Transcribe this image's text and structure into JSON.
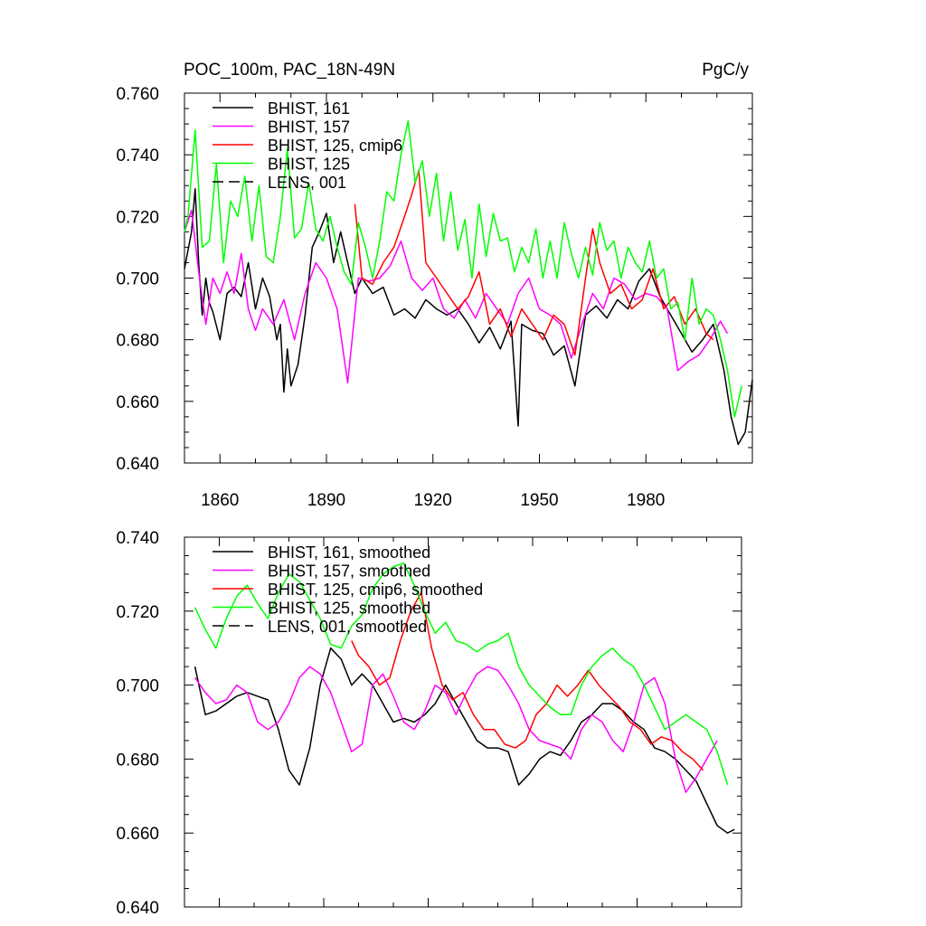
{
  "title_left": "POC_100m, PAC_18N-49N",
  "title_right": "PgC/y",
  "chart_data": [
    {
      "type": "line",
      "title": "POC_100m, PAC_18N-49N",
      "units": "PgC/y",
      "xlim": [
        1850,
        2010
      ],
      "ylim": [
        0.64,
        0.76
      ],
      "xticks": [
        "1860",
        "1890",
        "1920",
        "1950",
        "1980"
      ],
      "xtick_values": [
        1860,
        1890,
        1920,
        1950,
        1980
      ],
      "yticks": [
        "0.640",
        "0.660",
        "0.680",
        "0.700",
        "0.720",
        "0.740",
        "0.760"
      ],
      "ytick_values": [
        0.64,
        0.66,
        0.68,
        0.7,
        0.72,
        0.74,
        0.76
      ],
      "legend_position": "top-left",
      "series": [
        {
          "name": "BHIST, 161",
          "color": "#000000",
          "dash": "solid",
          "x": [
            1850,
            1852,
            1853,
            1854,
            1855,
            1856,
            1857,
            1858,
            1860,
            1862,
            1864,
            1866,
            1868,
            1870,
            1872,
            1874,
            1876,
            1877,
            1878,
            1879,
            1880,
            1882,
            1884,
            1886,
            1888,
            1890,
            1892,
            1894,
            1896,
            1898,
            1900,
            1903,
            1906,
            1909,
            1912,
            1915,
            1918,
            1921,
            1924,
            1927,
            1930,
            1933,
            1936,
            1939,
            1942,
            1944,
            1945,
            1948,
            1951,
            1954,
            1957,
            1960,
            1963,
            1966,
            1969,
            1972,
            1975,
            1978,
            1981,
            1984,
            1987,
            1990,
            1993,
            1996,
            1999,
            2002,
            2004,
            2006,
            2008,
            2010
          ],
          "y": [
            0.703,
            0.715,
            0.729,
            0.705,
            0.688,
            0.7,
            0.692,
            0.689,
            0.68,
            0.695,
            0.697,
            0.694,
            0.705,
            0.69,
            0.7,
            0.694,
            0.68,
            0.685,
            0.663,
            0.677,
            0.665,
            0.672,
            0.688,
            0.71,
            0.715,
            0.721,
            0.705,
            0.715,
            0.705,
            0.695,
            0.7,
            0.695,
            0.697,
            0.688,
            0.69,
            0.687,
            0.693,
            0.69,
            0.688,
            0.69,
            0.685,
            0.679,
            0.684,
            0.677,
            0.686,
            0.652,
            0.685,
            0.683,
            0.682,
            0.675,
            0.678,
            0.665,
            0.688,
            0.691,
            0.687,
            0.693,
            0.69,
            0.699,
            0.703,
            0.694,
            0.688,
            0.682,
            0.676,
            0.68,
            0.685,
            0.67,
            0.655,
            0.646,
            0.65,
            0.667
          ]
        },
        {
          "name": "BHIST, 157",
          "color": "#ff00ff",
          "dash": "solid",
          "x": [
            1850,
            1852,
            1854,
            1856,
            1858,
            1860,
            1862,
            1864,
            1866,
            1868,
            1870,
            1872,
            1875,
            1878,
            1881,
            1884,
            1887,
            1890,
            1893,
            1896,
            1899,
            1902,
            1905,
            1908,
            1911,
            1914,
            1917,
            1920,
            1923,
            1926,
            1929,
            1932,
            1935,
            1938,
            1941,
            1944,
            1947,
            1950,
            1953,
            1956,
            1959,
            1962,
            1965,
            1968,
            1971,
            1974,
            1977,
            1980,
            1983,
            1986,
            1989,
            1992,
            1995,
            1998,
            2001,
            2003
          ],
          "y": [
            0.715,
            0.722,
            0.702,
            0.685,
            0.7,
            0.695,
            0.702,
            0.695,
            0.708,
            0.69,
            0.683,
            0.69,
            0.685,
            0.693,
            0.68,
            0.695,
            0.705,
            0.7,
            0.69,
            0.666,
            0.7,
            0.699,
            0.7,
            0.704,
            0.712,
            0.7,
            0.696,
            0.7,
            0.69,
            0.687,
            0.693,
            0.687,
            0.695,
            0.69,
            0.685,
            0.695,
            0.7,
            0.69,
            0.688,
            0.685,
            0.674,
            0.685,
            0.695,
            0.69,
            0.7,
            0.698,
            0.693,
            0.695,
            0.694,
            0.69,
            0.67,
            0.673,
            0.675,
            0.68,
            0.686,
            0.682
          ]
        },
        {
          "name": "BHIST, 125, cmip6",
          "color": "#ff0000",
          "dash": "solid",
          "x": [
            1898,
            1900,
            1903,
            1906,
            1909,
            1912,
            1914,
            1916,
            1918,
            1921,
            1924,
            1927,
            1930,
            1933,
            1936,
            1939,
            1942,
            1945,
            1948,
            1951,
            1954,
            1957,
            1960,
            1963,
            1965,
            1967,
            1970,
            1973,
            1976,
            1979,
            1982,
            1985,
            1988,
            1991,
            1994,
            1997,
            1999
          ],
          "y": [
            0.724,
            0.7,
            0.698,
            0.705,
            0.71,
            0.72,
            0.727,
            0.735,
            0.705,
            0.7,
            0.695,
            0.69,
            0.694,
            0.702,
            0.685,
            0.69,
            0.681,
            0.69,
            0.685,
            0.68,
            0.688,
            0.685,
            0.675,
            0.7,
            0.716,
            0.705,
            0.695,
            0.698,
            0.69,
            0.693,
            0.703,
            0.69,
            0.694,
            0.685,
            0.69,
            0.682,
            0.68
          ]
        },
        {
          "name": "BHIST, 125",
          "color": "#00ff00",
          "dash": "solid",
          "x": [
            1850,
            1851,
            1853,
            1855,
            1857,
            1859,
            1861,
            1863,
            1865,
            1867,
            1869,
            1871,
            1873,
            1875,
            1877,
            1879,
            1881,
            1883,
            1885,
            1887,
            1889,
            1891,
            1893,
            1895,
            1897,
            1899,
            1901,
            1903,
            1905,
            1907,
            1909,
            1911,
            1913,
            1915,
            1917,
            1919,
            1921,
            1923,
            1925,
            1927,
            1929,
            1931,
            1933,
            1935,
            1937,
            1939,
            1941,
            1943,
            1945,
            1947,
            1949,
            1951,
            1953,
            1955,
            1957,
            1959,
            1961,
            1963,
            1965,
            1967,
            1969,
            1971,
            1973,
            1975,
            1977,
            1979,
            1981,
            1983,
            1985,
            1987,
            1989,
            1991,
            1993,
            1995,
            1997,
            1999,
            2001,
            2003,
            2005,
            2007
          ],
          "y": [
            0.715,
            0.72,
            0.748,
            0.71,
            0.712,
            0.737,
            0.705,
            0.725,
            0.72,
            0.733,
            0.712,
            0.73,
            0.707,
            0.705,
            0.72,
            0.742,
            0.713,
            0.716,
            0.731,
            0.716,
            0.712,
            0.72,
            0.71,
            0.702,
            0.698,
            0.718,
            0.71,
            0.7,
            0.712,
            0.728,
            0.725,
            0.74,
            0.751,
            0.731,
            0.738,
            0.72,
            0.734,
            0.712,
            0.728,
            0.709,
            0.719,
            0.7,
            0.724,
            0.707,
            0.721,
            0.712,
            0.713,
            0.702,
            0.71,
            0.705,
            0.716,
            0.7,
            0.712,
            0.7,
            0.718,
            0.708,
            0.7,
            0.71,
            0.701,
            0.718,
            0.709,
            0.712,
            0.7,
            0.71,
            0.705,
            0.702,
            0.712,
            0.7,
            0.703,
            0.69,
            0.692,
            0.68,
            0.7,
            0.685,
            0.69,
            0.688,
            0.68,
            0.67,
            0.655,
            0.665
          ]
        },
        {
          "name": "LENS, 001",
          "color": "#000000",
          "dash": "dashed",
          "x": [],
          "y": []
        }
      ]
    },
    {
      "type": "line",
      "xlim": [
        1850,
        2010
      ],
      "ylim": [
        0.64,
        0.74
      ],
      "yticks": [
        "0.640",
        "0.660",
        "0.680",
        "0.700",
        "0.720",
        "0.740"
      ],
      "ytick_values": [
        0.64,
        0.66,
        0.68,
        0.7,
        0.72,
        0.74
      ],
      "legend_position": "top-left",
      "series": [
        {
          "name": "BHIST, 161, smoothed",
          "color": "#000000",
          "dash": "solid",
          "x": [
            1853,
            1856,
            1859,
            1862,
            1865,
            1868,
            1871,
            1874,
            1877,
            1880,
            1883,
            1886,
            1889,
            1892,
            1895,
            1898,
            1901,
            1904,
            1907,
            1910,
            1913,
            1916,
            1919,
            1922,
            1925,
            1928,
            1931,
            1934,
            1937,
            1940,
            1943,
            1946,
            1949,
            1952,
            1955,
            1958,
            1961,
            1964,
            1967,
            1970,
            1973,
            1976,
            1979,
            1982,
            1985,
            1988,
            1991,
            1994,
            1997,
            2000,
            2003,
            2006,
            2008
          ],
          "y": [
            0.705,
            0.692,
            0.693,
            0.695,
            0.697,
            0.698,
            0.697,
            0.696,
            0.688,
            0.677,
            0.673,
            0.683,
            0.7,
            0.71,
            0.707,
            0.7,
            0.703,
            0.7,
            0.695,
            0.69,
            0.691,
            0.69,
            0.692,
            0.695,
            0.7,
            0.695,
            0.69,
            0.685,
            0.683,
            0.683,
            0.682,
            0.673,
            0.676,
            0.68,
            0.682,
            0.681,
            0.685,
            0.69,
            0.692,
            0.695,
            0.695,
            0.693,
            0.69,
            0.688,
            0.683,
            0.682,
            0.68,
            0.677,
            0.674,
            0.668,
            0.662,
            0.66,
            0.661
          ]
        },
        {
          "name": "BHIST, 157, smoothed",
          "color": "#ff00ff",
          "dash": "solid",
          "x": [
            1853,
            1856,
            1859,
            1862,
            1865,
            1868,
            1871,
            1874,
            1877,
            1880,
            1883,
            1886,
            1889,
            1892,
            1895,
            1898,
            1901,
            1904,
            1907,
            1910,
            1913,
            1916,
            1919,
            1922,
            1925,
            1928,
            1931,
            1934,
            1937,
            1940,
            1943,
            1946,
            1949,
            1952,
            1955,
            1958,
            1961,
            1964,
            1967,
            1970,
            1973,
            1976,
            1979,
            1982,
            1985,
            1988,
            1991,
            1994,
            1997,
            2000,
            2003
          ],
          "y": [
            0.702,
            0.698,
            0.695,
            0.696,
            0.7,
            0.698,
            0.69,
            0.688,
            0.69,
            0.695,
            0.702,
            0.705,
            0.703,
            0.698,
            0.69,
            0.682,
            0.684,
            0.7,
            0.703,
            0.697,
            0.69,
            0.688,
            0.693,
            0.7,
            0.698,
            0.692,
            0.698,
            0.703,
            0.705,
            0.704,
            0.7,
            0.695,
            0.688,
            0.685,
            0.684,
            0.683,
            0.68,
            0.688,
            0.692,
            0.69,
            0.685,
            0.682,
            0.69,
            0.7,
            0.702,
            0.695,
            0.68,
            0.671,
            0.675,
            0.68,
            0.685
          ]
        },
        {
          "name": "BHIST, 125, cmip6, smoothed",
          "color": "#ff0000",
          "dash": "solid",
          "x": [
            1898,
            1900,
            1903,
            1906,
            1909,
            1912,
            1915,
            1918,
            1921,
            1924,
            1927,
            1930,
            1933,
            1936,
            1939,
            1942,
            1945,
            1948,
            1951,
            1954,
            1957,
            1960,
            1963,
            1966,
            1969,
            1972,
            1975,
            1978,
            1981,
            1984,
            1987,
            1990,
            1993,
            1996,
            1999
          ],
          "y": [
            0.712,
            0.708,
            0.705,
            0.7,
            0.702,
            0.712,
            0.72,
            0.725,
            0.71,
            0.7,
            0.696,
            0.698,
            0.692,
            0.688,
            0.688,
            0.684,
            0.683,
            0.685,
            0.692,
            0.695,
            0.7,
            0.697,
            0.7,
            0.704,
            0.7,
            0.697,
            0.694,
            0.69,
            0.688,
            0.684,
            0.686,
            0.685,
            0.682,
            0.68,
            0.677
          ]
        },
        {
          "name": "BHIST, 125, smoothed",
          "color": "#00ff00",
          "dash": "solid",
          "x": [
            1853,
            1856,
            1859,
            1862,
            1865,
            1868,
            1871,
            1874,
            1877,
            1880,
            1883,
            1886,
            1889,
            1892,
            1895,
            1898,
            1901,
            1904,
            1907,
            1910,
            1913,
            1916,
            1919,
            1922,
            1925,
            1928,
            1931,
            1934,
            1937,
            1940,
            1943,
            1946,
            1949,
            1952,
            1955,
            1958,
            1961,
            1964,
            1967,
            1970,
            1973,
            1976,
            1979,
            1982,
            1985,
            1988,
            1991,
            1994,
            1997,
            2000,
            2003,
            2006
          ],
          "y": [
            0.721,
            0.715,
            0.71,
            0.718,
            0.724,
            0.727,
            0.722,
            0.718,
            0.725,
            0.73,
            0.728,
            0.723,
            0.718,
            0.711,
            0.71,
            0.716,
            0.719,
            0.726,
            0.73,
            0.732,
            0.733,
            0.727,
            0.72,
            0.714,
            0.717,
            0.712,
            0.711,
            0.709,
            0.711,
            0.712,
            0.714,
            0.705,
            0.7,
            0.697,
            0.694,
            0.692,
            0.692,
            0.7,
            0.705,
            0.708,
            0.71,
            0.707,
            0.705,
            0.7,
            0.694,
            0.688,
            0.69,
            0.692,
            0.69,
            0.688,
            0.682,
            0.673
          ]
        },
        {
          "name": "LENS, 001, smoothed",
          "color": "#000000",
          "dash": "dashed",
          "x": [],
          "y": []
        }
      ]
    }
  ]
}
